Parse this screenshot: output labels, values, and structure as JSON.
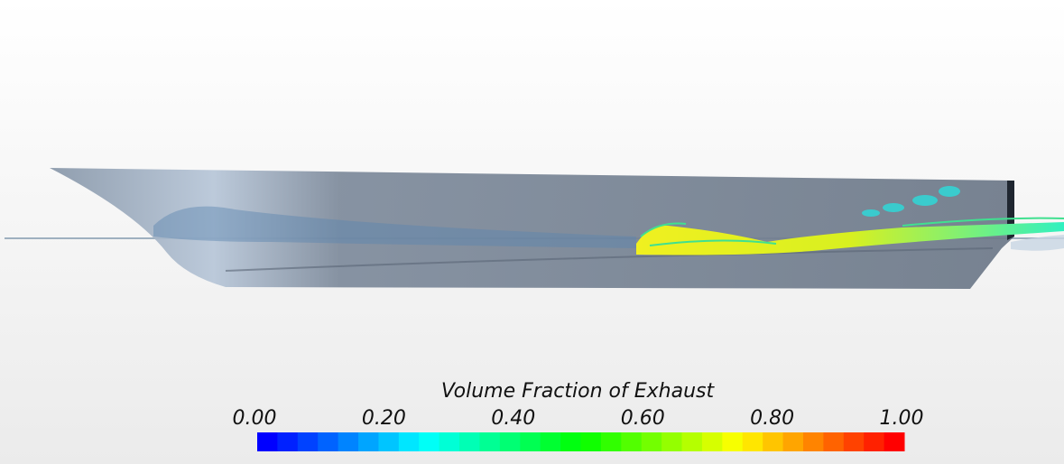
{
  "colorbar": {
    "title": "Volume Fraction of Exhaust",
    "range": [
      0,
      1
    ],
    "ticks": [
      {
        "value": 0,
        "label": "0.00"
      },
      {
        "value": 0.2,
        "label": "0.20"
      },
      {
        "value": 0.4,
        "label": "0.40"
      },
      {
        "value": 0.6,
        "label": "0.60"
      },
      {
        "value": 0.8,
        "label": "0.80"
      },
      {
        "value": 1,
        "label": "1.00"
      }
    ],
    "colormap": [
      "#0000ff",
      "#00ffff",
      "#00ff00",
      "#ffff00",
      "#ff0000"
    ],
    "segments": 32
  }
}
